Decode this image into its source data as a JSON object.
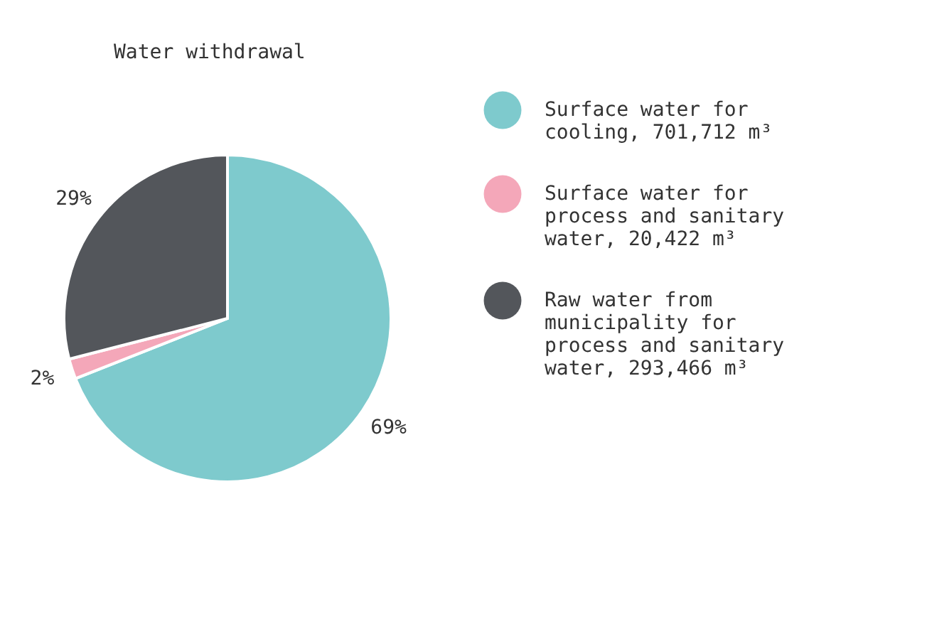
{
  "chart_data": {
    "type": "pie",
    "title": "Water withdrawal",
    "categories": [
      "Surface water for cooling, 701,712 m³",
      "Surface water for process and sanitary water, 20,422 m³",
      "Raw water from municipality for process and sanitary water, 293,466 m³"
    ],
    "values": [
      69,
      2,
      29
    ],
    "value_labels": [
      "69%",
      "2%",
      "29%"
    ],
    "colors": [
      "#7ecacd",
      "#f4a7b9",
      "#53565b"
    ],
    "legend": "right"
  }
}
